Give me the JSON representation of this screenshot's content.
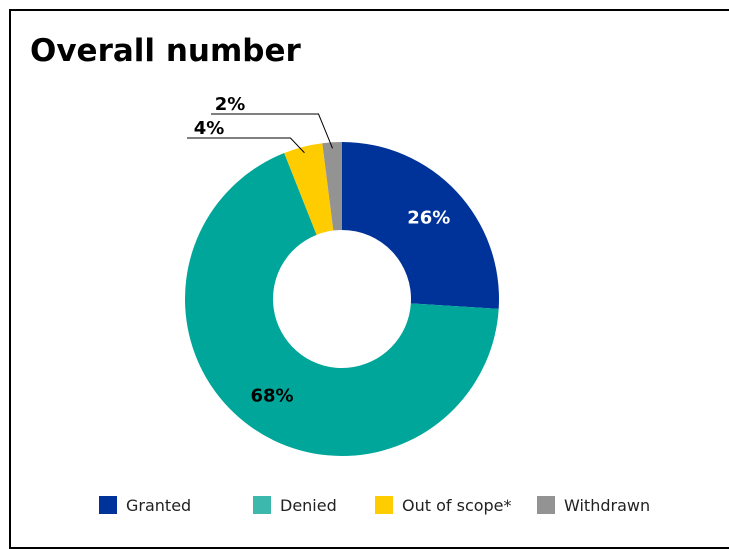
{
  "title": "Overall number",
  "chart_data": {
    "type": "donut",
    "title": "Overall number",
    "slices": [
      {
        "label": "Granted",
        "value": 26,
        "display": "26%",
        "color": "#003399"
      },
      {
        "label": "Denied",
        "value": 68,
        "display": "68%",
        "color": "#00a699"
      },
      {
        "label": "Out of scope*",
        "value": 4,
        "display": "4%",
        "color": "#ffcc00"
      },
      {
        "label": "Withdrawn",
        "value": 2,
        "display": "2%",
        "color": "#939393"
      }
    ],
    "legend": {
      "position": "bottom",
      "items": [
        {
          "label": "Granted",
          "color": "#003399"
        },
        {
          "label": "Denied",
          "color": "#3cb8ad"
        },
        {
          "label": "Out of scope*",
          "color": "#ffcc00"
        },
        {
          "label": "Withdrawn",
          "color": "#939393"
        }
      ]
    }
  }
}
